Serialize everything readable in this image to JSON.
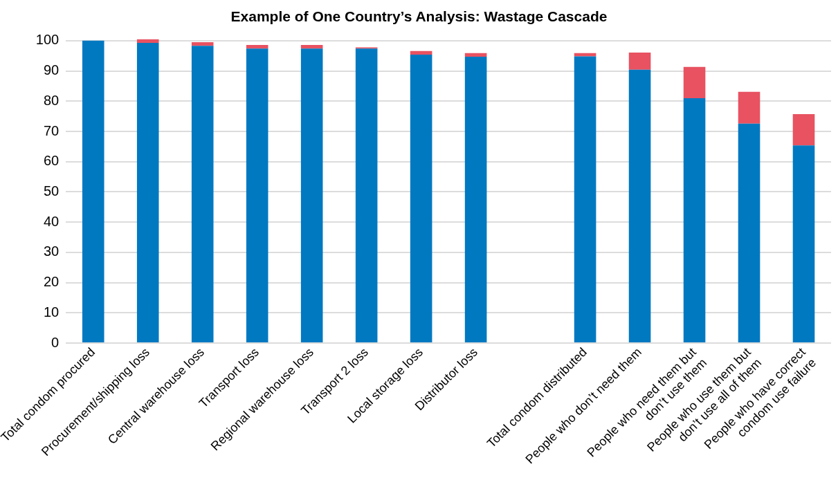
{
  "chart_data": {
    "type": "bar",
    "stacked": true,
    "title": "Example of One Country’s Analysis: Wastage Cascade",
    "categories": [
      "Total condom procured",
      "Procurement/shipping loss",
      "Central warehouse loss",
      "Transport loss",
      "Regional warehouse loss",
      "Transport 2 loss",
      "Local storage loss",
      "Distributor loss",
      null,
      "Total condom distributed",
      "People who don’t need them",
      "People who need them but\ndon’t use them",
      "People who use them but\ndon’t use all of them",
      "People who have correct\ncondom use failure"
    ],
    "series": [
      {
        "color": "#0079c1",
        "values": [
          100,
          99.3,
          98.3,
          97.4,
          97.4,
          97.4,
          95.4,
          94.7,
          null,
          94.8,
          90.4,
          81.0,
          72.6,
          65.4
        ]
      },
      {
        "color": "#e85261",
        "values": [
          0,
          1.2,
          1.2,
          1.2,
          1.2,
          0.4,
          1.2,
          1.2,
          null,
          1.1,
          5.7,
          10.3,
          10.5,
          10.3
        ]
      }
    ],
    "ylim": [
      0,
      100.6
    ],
    "yticks": [
      0,
      10,
      20,
      30,
      40,
      50,
      60,
      70,
      80,
      90,
      100
    ],
    "grid": "y",
    "legend": false
  }
}
